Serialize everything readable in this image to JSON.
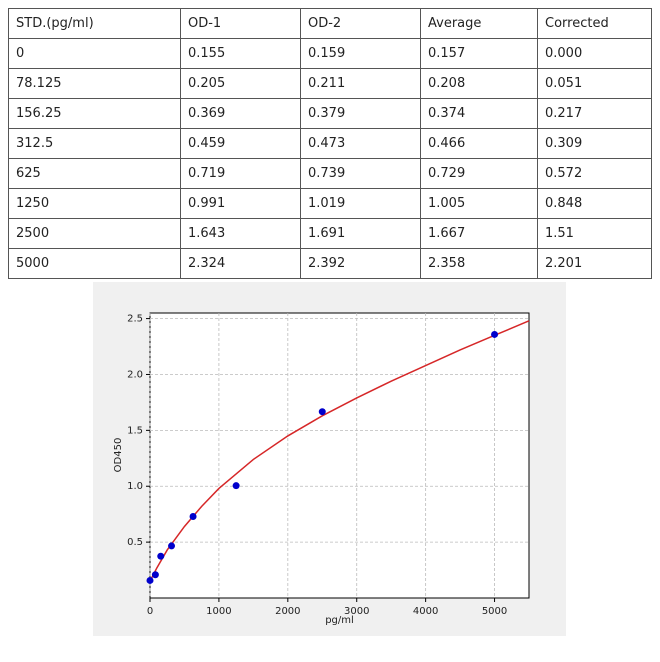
{
  "table": {
    "header": [
      "STD.(pg/ml)",
      "OD-1",
      "OD-2",
      "Average",
      "Corrected"
    ],
    "rows": [
      [
        "0",
        "0.155",
        "0.159",
        "0.157",
        "0.000"
      ],
      [
        "78.125",
        "0.205",
        "0.211",
        "0.208",
        "0.051"
      ],
      [
        "156.25",
        "0.369",
        "0.379",
        "0.374",
        "0.217"
      ],
      [
        "312.5",
        "0.459",
        "0.473",
        "0.466",
        "0.309"
      ],
      [
        "625",
        "0.719",
        "0.739",
        "0.729",
        "0.572"
      ],
      [
        "1250",
        "0.991",
        "1.019",
        "1.005",
        "0.848"
      ],
      [
        "2500",
        "1.643",
        "1.691",
        "1.667",
        "1.51"
      ],
      [
        "5000",
        "2.324",
        "2.392",
        "2.358",
        "2.201"
      ]
    ]
  },
  "chart_data": {
    "type": "scatter",
    "x_label": "pg/ml",
    "y_label": "OD450",
    "xlim": [
      0,
      5500
    ],
    "ylim": [
      0,
      2.55
    ],
    "xticks": [
      0,
      1000,
      2000,
      3000,
      4000,
      5000
    ],
    "yticks": [
      {
        "value": 0.5,
        "label": "0.5"
      },
      {
        "value": 1,
        "label": "1.0"
      },
      {
        "value": 1.5,
        "label": "1.5"
      },
      {
        "value": 2,
        "label": "2.0"
      },
      {
        "value": 2.5,
        "label": "2.5"
      }
    ],
    "grid": true,
    "series": [
      {
        "type": "line",
        "color": "#d62728",
        "x": [
          0,
          100,
          250,
          500,
          750,
          1000,
          1500,
          2000,
          2500,
          3000,
          3500,
          4000,
          4500,
          5000,
          5500
        ],
        "values": [
          0.15,
          0.27,
          0.43,
          0.64,
          0.82,
          0.98,
          1.24,
          1.45,
          1.63,
          1.79,
          1.94,
          2.08,
          2.22,
          2.35,
          2.48
        ]
      },
      {
        "type": "scatter",
        "color": "#0000cc",
        "x": [
          0,
          78.125,
          156.25,
          312.5,
          625,
          1250,
          2500,
          5000
        ],
        "values": [
          0.157,
          0.208,
          0.374,
          0.466,
          0.729,
          1.005,
          1.667,
          2.358
        ]
      }
    ]
  }
}
